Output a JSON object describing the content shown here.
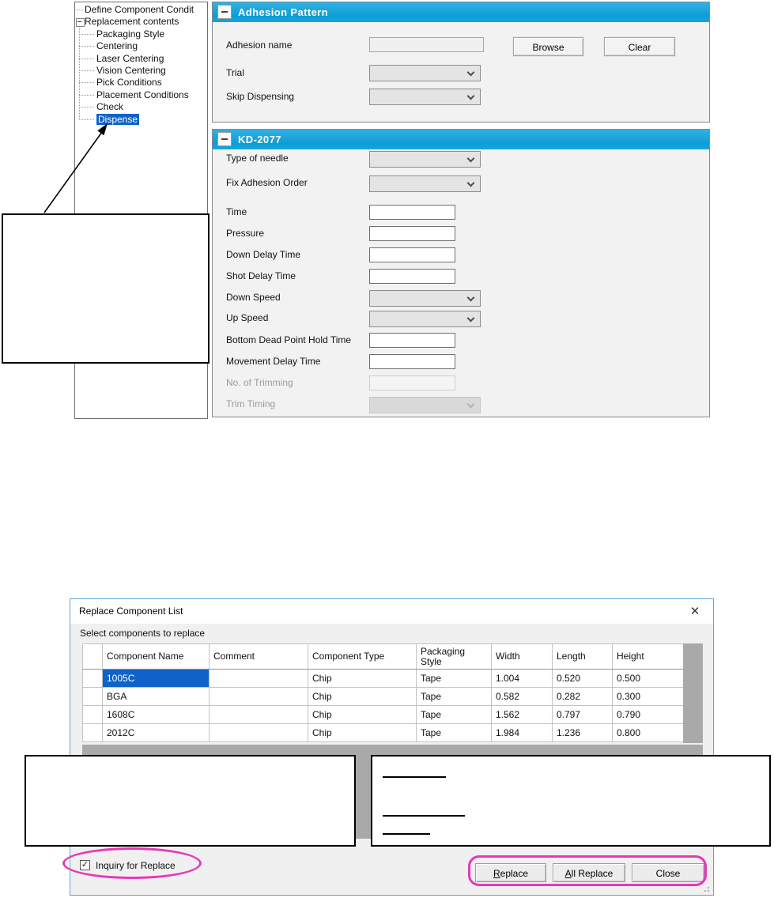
{
  "tree": {
    "items": [
      {
        "label": "Define Component Condit",
        "level": 0,
        "expander": false,
        "selected": false
      },
      {
        "label": "Replacement contents",
        "level": 0,
        "expander": true,
        "selected": false
      },
      {
        "label": "Packaging Style",
        "level": 1,
        "expander": false,
        "selected": false
      },
      {
        "label": "Centering",
        "level": 1,
        "expander": false,
        "selected": false
      },
      {
        "label": "Laser Centering",
        "level": 1,
        "expander": false,
        "selected": false
      },
      {
        "label": "Vision Centering",
        "level": 1,
        "expander": false,
        "selected": false
      },
      {
        "label": "Pick Conditions",
        "level": 1,
        "expander": false,
        "selected": false
      },
      {
        "label": "Placement Conditions",
        "level": 1,
        "expander": false,
        "selected": false
      },
      {
        "label": "Check",
        "level": 1,
        "expander": false,
        "selected": false
      },
      {
        "label": "Dispense",
        "level": 1,
        "expander": false,
        "selected": true
      }
    ]
  },
  "adhesion_panel": {
    "title": "Adhesion Pattern",
    "name_label": "Adhesion name",
    "name_value": "",
    "browse_label": "Browse",
    "clear_label": "Clear",
    "trial_label": "Trial",
    "trial_value": "",
    "skip_label": "Skip Dispensing",
    "skip_value": ""
  },
  "kd_panel": {
    "title": "KD-2077",
    "rows": [
      {
        "label": "Type of needle",
        "control": "select",
        "enabled": true,
        "value": ""
      },
      {
        "label": "Fix Adhesion Order",
        "control": "select",
        "enabled": true,
        "value": ""
      },
      {
        "label": "Time",
        "control": "text",
        "enabled": true,
        "value": ""
      },
      {
        "label": "Pressure",
        "control": "text",
        "enabled": true,
        "value": ""
      },
      {
        "label": "Down Delay Time",
        "control": "text",
        "enabled": true,
        "value": ""
      },
      {
        "label": "Shot Delay Time",
        "control": "text",
        "enabled": true,
        "value": ""
      },
      {
        "label": "Down Speed",
        "control": "select",
        "enabled": true,
        "value": ""
      },
      {
        "label": "Up Speed",
        "control": "select",
        "enabled": true,
        "value": ""
      },
      {
        "label": "Bottom Dead Point Hold Time",
        "control": "text",
        "enabled": true,
        "value": ""
      },
      {
        "label": "Movement Delay Time",
        "control": "text",
        "enabled": true,
        "value": ""
      },
      {
        "label": "No. of Trimming",
        "control": "text",
        "enabled": false,
        "value": ""
      },
      {
        "label": "Trim Timing",
        "control": "select",
        "enabled": false,
        "value": ""
      }
    ]
  },
  "dialog": {
    "title": "Replace Component List",
    "close_icon": "✕",
    "subtitle": "Select components to replace",
    "table": {
      "columns": [
        "Component Name",
        "Comment",
        "Component Type",
        "Packaging Style",
        "Width",
        "Length",
        "Height"
      ],
      "rows": [
        {
          "cells": [
            "1005C",
            "",
            "Chip",
            "Tape",
            "1.004",
            "0.520",
            "0.500"
          ],
          "selected": true
        },
        {
          "cells": [
            "BGA",
            "",
            "Chip",
            "Tape",
            "0.582",
            "0.282",
            "0.300"
          ],
          "selected": false
        },
        {
          "cells": [
            "1608C",
            "",
            "Chip",
            "Tape",
            "1.562",
            "0.797",
            "0.790"
          ],
          "selected": false
        },
        {
          "cells": [
            "2012C",
            "",
            "Chip",
            "Tape",
            "1.984",
            "1.236",
            "0.800"
          ],
          "selected": false
        }
      ]
    },
    "inquiry_checkbox": {
      "label": "Inquiry for Replace",
      "checked": true,
      "check_icon": "✓"
    },
    "buttons": [
      {
        "label": "Replace",
        "accel": "R",
        "rest": "eplace"
      },
      {
        "label": "All Replace",
        "accel": "A",
        "rest": "ll Replace"
      },
      {
        "label": "Close",
        "accel": "",
        "rest": "Close"
      }
    ]
  },
  "colors": {
    "header_accent": "#16a2da",
    "selection_blue": "#0f63c8",
    "annotation_magenta": "#e838b8",
    "scrollbar_gray": "#a9a9a9",
    "dialog_border_blue": "#5aa7de"
  }
}
